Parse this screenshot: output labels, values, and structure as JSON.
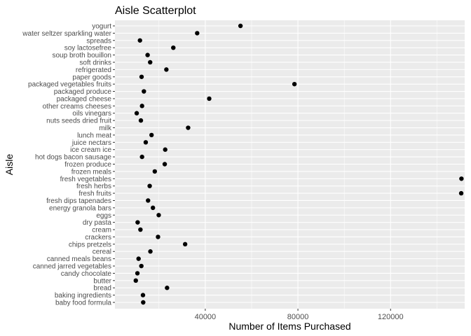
{
  "chart_data": {
    "type": "scatter",
    "title": "Aisle Scatterplot",
    "xlabel": "Number of Items Purchased",
    "ylabel": "Aisle",
    "xlim": [
      1000,
      152000
    ],
    "xticks": [
      40000,
      80000,
      120000
    ],
    "xtick_labels": [
      "40000",
      "80000",
      "120000"
    ],
    "grid": true,
    "legend": "none",
    "point_color": "#000000",
    "panel_color": "#ebebeb",
    "grid_color": "#ffffff",
    "points": [
      {
        "aisle": "baby food formula",
        "value": 13200
      },
      {
        "aisle": "baking ingredients",
        "value": 13100
      },
      {
        "aisle": "bread",
        "value": 23500
      },
      {
        "aisle": "butter",
        "value": 10000
      },
      {
        "aisle": "candy chocolate",
        "value": 10700
      },
      {
        "aisle": "canned jarred vegetables",
        "value": 12400
      },
      {
        "aisle": "canned meals beans",
        "value": 11200
      },
      {
        "aisle": "cereal",
        "value": 16300
      },
      {
        "aisle": "chips pretzels",
        "value": 31300
      },
      {
        "aisle": "crackers",
        "value": 19600
      },
      {
        "aisle": "cream",
        "value": 12000
      },
      {
        "aisle": "dry pasta",
        "value": 10800
      },
      {
        "aisle": "eggs",
        "value": 19900
      },
      {
        "aisle": "energy granola bars",
        "value": 17400
      },
      {
        "aisle": "fresh dips tapenades",
        "value": 15300
      },
      {
        "aisle": "fresh fruits",
        "value": 150500
      },
      {
        "aisle": "fresh herbs",
        "value": 16000
      },
      {
        "aisle": "fresh vegetables",
        "value": 150600
      },
      {
        "aisle": "frozen meals",
        "value": 18200
      },
      {
        "aisle": "frozen produce",
        "value": 22500
      },
      {
        "aisle": "hot dogs bacon sausage",
        "value": 12700
      },
      {
        "aisle": "ice cream ice",
        "value": 22700
      },
      {
        "aisle": "juice nectars",
        "value": 14300
      },
      {
        "aisle": "lunch meat",
        "value": 16800
      },
      {
        "aisle": "milk",
        "value": 32600
      },
      {
        "aisle": "nuts seeds dried fruit",
        "value": 12200
      },
      {
        "aisle": "oils vinegars",
        "value": 10400
      },
      {
        "aisle": "other creams cheeses",
        "value": 12700
      },
      {
        "aisle": "packaged cheese",
        "value": 41700
      },
      {
        "aisle": "packaged produce",
        "value": 13500
      },
      {
        "aisle": "packaged vegetables fruits",
        "value": 78500
      },
      {
        "aisle": "paper goods",
        "value": 12500
      },
      {
        "aisle": "refrigerated",
        "value": 23200
      },
      {
        "aisle": "soft drinks",
        "value": 16200
      },
      {
        "aisle": "soup broth bouillon",
        "value": 15100
      },
      {
        "aisle": "soy lactosefree",
        "value": 26200
      },
      {
        "aisle": "spreads",
        "value": 11800
      },
      {
        "aisle": "water seltzer sparkling water",
        "value": 36500
      },
      {
        "aisle": "yogurt",
        "value": 55200
      }
    ]
  }
}
